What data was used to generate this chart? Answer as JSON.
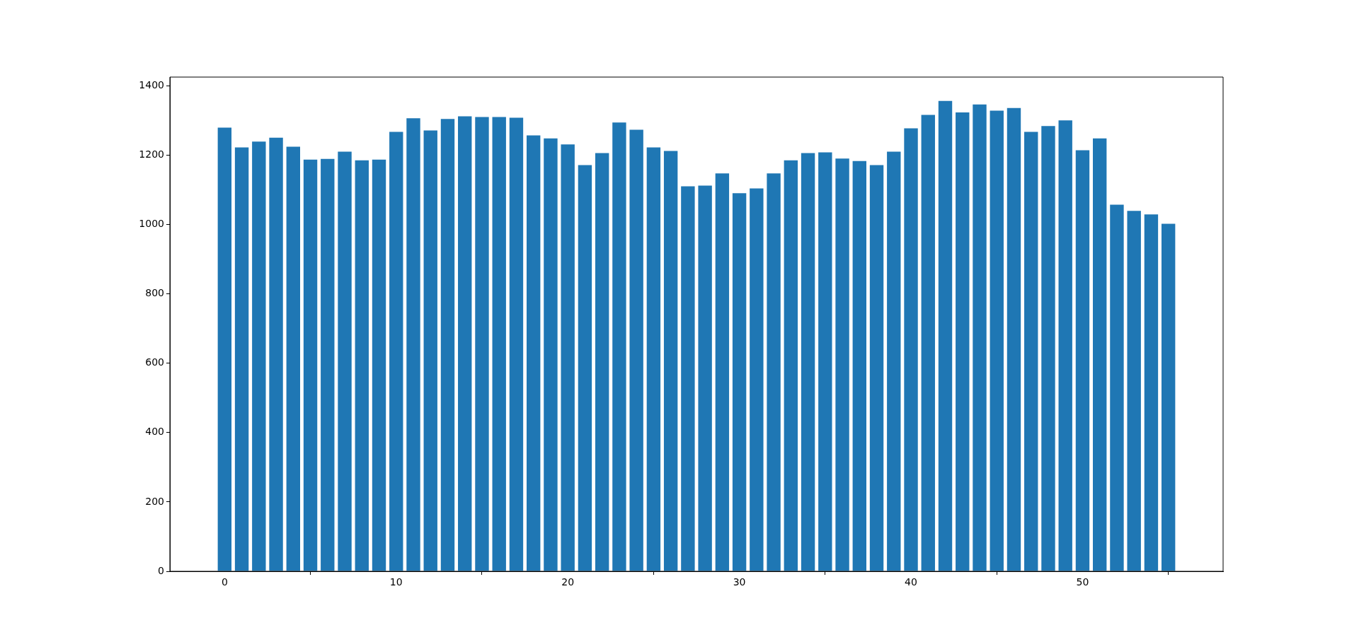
{
  "chart_data": {
    "type": "bar",
    "x": [
      0,
      1,
      2,
      3,
      4,
      5,
      6,
      7,
      8,
      9,
      10,
      11,
      12,
      13,
      14,
      15,
      16,
      17,
      18,
      19,
      20,
      21,
      22,
      23,
      24,
      25,
      26,
      27,
      28,
      29,
      30,
      31,
      32,
      33,
      34,
      35,
      36,
      37,
      38,
      39,
      40,
      41,
      42,
      43,
      44,
      45,
      46,
      47,
      48,
      49,
      50,
      51,
      52,
      53,
      54,
      55
    ],
    "values": [
      1279,
      1222,
      1239,
      1250,
      1224,
      1187,
      1189,
      1210,
      1185,
      1187,
      1267,
      1306,
      1271,
      1304,
      1312,
      1310,
      1310,
      1308,
      1257,
      1248,
      1231,
      1171,
      1206,
      1294,
      1273,
      1222,
      1212,
      1110,
      1112,
      1147,
      1090,
      1104,
      1147,
      1185,
      1206,
      1208,
      1190,
      1183,
      1171,
      1210,
      1277,
      1316,
      1356,
      1323,
      1346,
      1328,
      1336,
      1267,
      1284,
      1300,
      1214,
      1248,
      1057,
      1039,
      1029,
      1002
    ],
    "color": "#1f77b4",
    "xlim": [
      -3.19,
      58.19
    ],
    "xticks": [
      0,
      10,
      20,
      30,
      40,
      50
    ],
    "ylim": [
      0,
      1425
    ],
    "yticks": [
      0,
      200,
      400,
      600,
      800,
      1000,
      1200,
      1400
    ],
    "grid": false,
    "legend": false
  }
}
